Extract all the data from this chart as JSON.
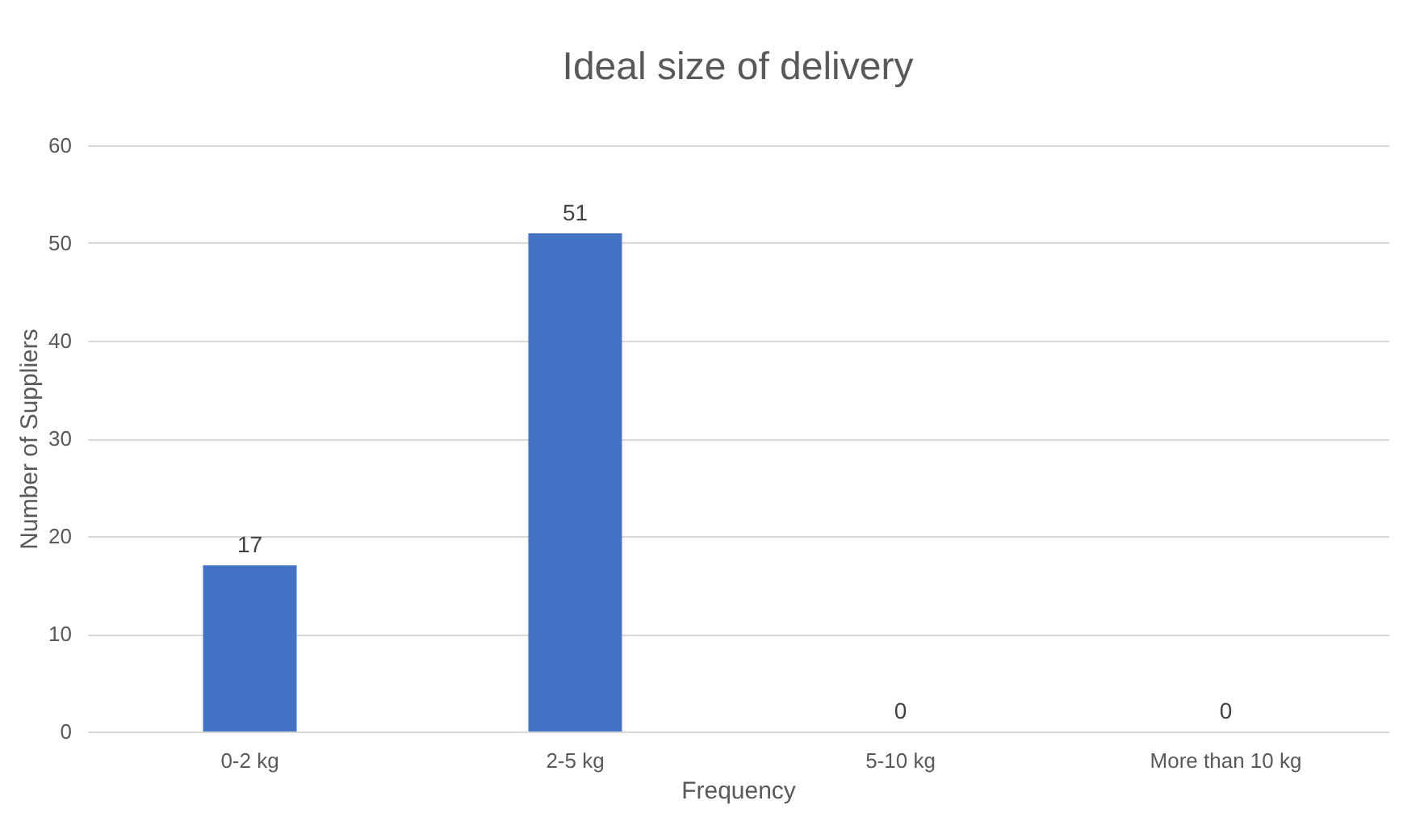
{
  "chart_data": {
    "type": "bar",
    "title": "Ideal size of delivery",
    "xlabel": "Frequency",
    "ylabel": "Number of Suppliers",
    "categories": [
      "0-2 kg",
      "2-5 kg",
      "5-10 kg",
      "More than 10 kg"
    ],
    "values": [
      17,
      51,
      0,
      0
    ],
    "color": "#4472c4",
    "ylim": [
      0,
      60
    ],
    "yticks": [
      0,
      10,
      20,
      30,
      40,
      50,
      60
    ],
    "grid": "y",
    "data_labels": true
  }
}
